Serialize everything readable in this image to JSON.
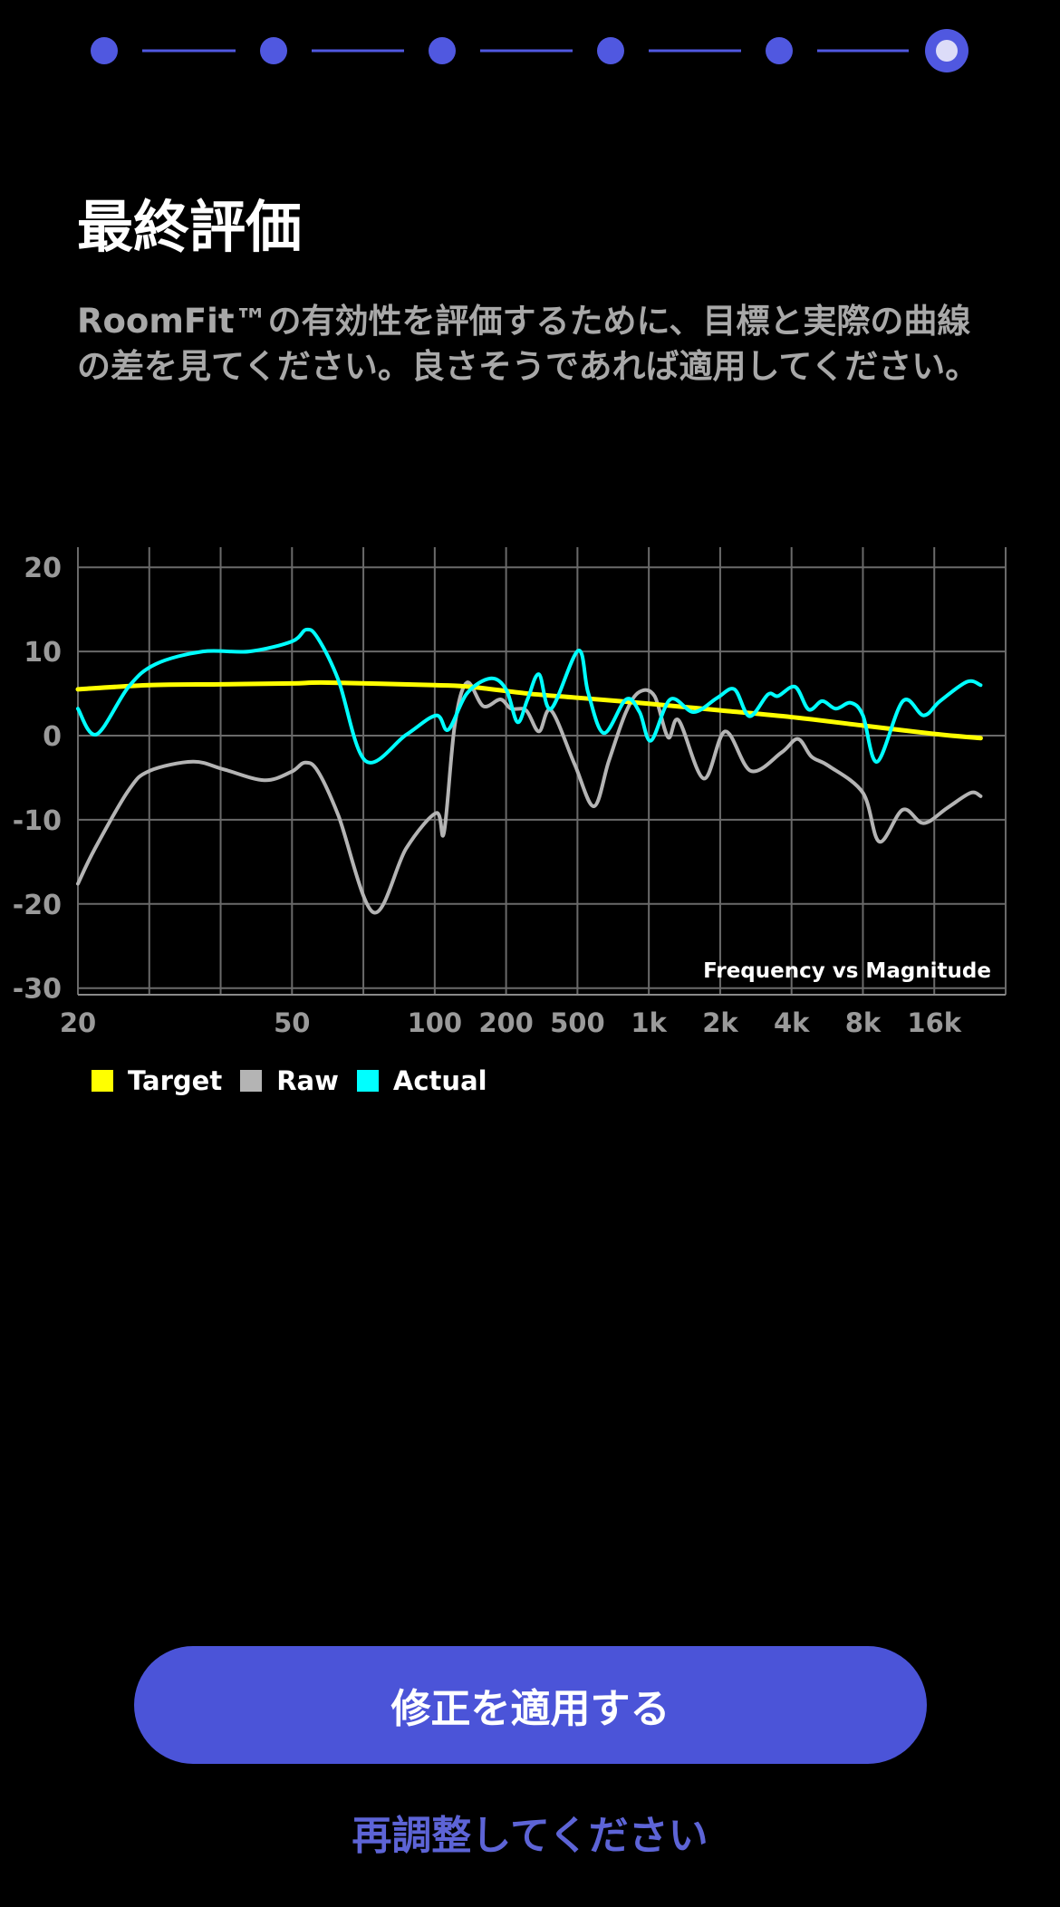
{
  "stepper": {
    "total": 6,
    "current": 6,
    "color": "#5058e0",
    "current_inner_color": "#dcdcf8"
  },
  "title": "最終評価",
  "description": "RoomFit™の有効性を評価するために、目標と実際の曲線の差を見てください。良さそうであれば適用してください。",
  "legend": [
    {
      "label": "Target",
      "color": "#ffff00"
    },
    {
      "label": "Raw",
      "color": "#b4b4b4"
    },
    {
      "label": "Actual",
      "color": "#00ffff"
    }
  ],
  "chart_data": {
    "type": "line",
    "title": "Frequency vs Magnitude",
    "xlabel": "",
    "ylabel": "",
    "x_units": "grid index (13 equal divisions)",
    "xlim": [
      0,
      13
    ],
    "ylim": [
      -31,
      22
    ],
    "yticks": [
      20,
      10,
      0,
      -10,
      -20,
      -30
    ],
    "xticks": [
      {
        "pos": 0,
        "label": "20"
      },
      {
        "pos": 3,
        "label": "50"
      },
      {
        "pos": 5,
        "label": "100"
      },
      {
        "pos": 6,
        "label": "200"
      },
      {
        "pos": 7,
        "label": "500"
      },
      {
        "pos": 8,
        "label": "1k"
      },
      {
        "pos": 9,
        "label": "2k"
      },
      {
        "pos": 10,
        "label": "4k"
      },
      {
        "pos": 11,
        "label": "8k"
      },
      {
        "pos": 12,
        "label": "16k"
      }
    ],
    "grid": true,
    "legend_position": "bottom-left",
    "series": [
      {
        "name": "Raw",
        "color": "#b4b4b4",
        "points": [
          [
            0,
            -17.6
          ],
          [
            0.24,
            -13.4
          ],
          [
            0.71,
            -6.5
          ],
          [
            1.0,
            -4.2
          ],
          [
            1.61,
            -3.1
          ],
          [
            2.04,
            -4
          ],
          [
            2.61,
            -5.3
          ],
          [
            2.99,
            -4.3
          ],
          [
            3.18,
            -3.2
          ],
          [
            3.36,
            -4.2
          ],
          [
            3.65,
            -9.5
          ],
          [
            4.14,
            -21
          ],
          [
            4.6,
            -13.4
          ],
          [
            5.02,
            -9.2
          ],
          [
            5.13,
            -11.5
          ],
          [
            5.28,
            1.2
          ],
          [
            5.45,
            6.3
          ],
          [
            5.68,
            3.5
          ],
          [
            5.92,
            4.3
          ],
          [
            6.07,
            3.2
          ],
          [
            6.28,
            3.0
          ],
          [
            6.46,
            0.5
          ],
          [
            6.63,
            3.0
          ],
          [
            6.96,
            -3.4
          ],
          [
            7.23,
            -8.4
          ],
          [
            7.44,
            -3
          ],
          [
            7.68,
            2.8
          ],
          [
            7.87,
            5.2
          ],
          [
            8.08,
            4.7
          ],
          [
            8.27,
            -0.2
          ],
          [
            8.42,
            1.8
          ],
          [
            8.77,
            -5.1
          ],
          [
            9.07,
            0.5
          ],
          [
            9.43,
            -4.2
          ],
          [
            9.86,
            -2
          ],
          [
            10.09,
            -0.4
          ],
          [
            10.28,
            -2.5
          ],
          [
            10.52,
            -3.6
          ],
          [
            11.0,
            -6.8
          ],
          [
            11.23,
            -12.6
          ],
          [
            11.56,
            -8.8
          ],
          [
            11.85,
            -10.4
          ],
          [
            12.18,
            -8.6
          ],
          [
            12.51,
            -6.8
          ],
          [
            12.65,
            -7.2
          ]
        ]
      },
      {
        "name": "Target",
        "color": "#ffff00",
        "points": [
          [
            0,
            5.5
          ],
          [
            1,
            6.0
          ],
          [
            2,
            6.1
          ],
          [
            3,
            6.2
          ],
          [
            3.5,
            6.3
          ],
          [
            5,
            6.0
          ],
          [
            5.5,
            5.8
          ],
          [
            6.3,
            5.0
          ],
          [
            7,
            4.5
          ],
          [
            8,
            3.8
          ],
          [
            9,
            3.0
          ],
          [
            10,
            2.2
          ],
          [
            11,
            1.2
          ],
          [
            12,
            0.2
          ],
          [
            12.65,
            -0.3
          ]
        ]
      },
      {
        "name": "Actual",
        "color": "#00ffff",
        "points": [
          [
            0,
            3.2
          ],
          [
            0.26,
            0.15
          ],
          [
            0.71,
            5.8
          ],
          [
            1.09,
            8.5
          ],
          [
            1.75,
            10
          ],
          [
            2.4,
            10
          ],
          [
            3.0,
            11.2
          ],
          [
            3.2,
            12.6
          ],
          [
            3.36,
            11.6
          ],
          [
            3.65,
            6.6
          ],
          [
            4.03,
            -3
          ],
          [
            4.6,
            0.1
          ],
          [
            5.02,
            2.4
          ],
          [
            5.19,
            0.7
          ],
          [
            5.45,
            5
          ],
          [
            5.78,
            6.8
          ],
          [
            6.0,
            5.5
          ],
          [
            6.16,
            1.6
          ],
          [
            6.3,
            4.3
          ],
          [
            6.46,
            7.3
          ],
          [
            6.63,
            3.2
          ],
          [
            7.01,
            10.1
          ],
          [
            7.15,
            5.1
          ],
          [
            7.37,
            0.3
          ],
          [
            7.68,
            4.3
          ],
          [
            7.87,
            2.8
          ],
          [
            8.03,
            -0.6
          ],
          [
            8.3,
            4.3
          ],
          [
            8.63,
            2.8
          ],
          [
            8.96,
            4.5
          ],
          [
            9.2,
            5.5
          ],
          [
            9.41,
            2.3
          ],
          [
            9.67,
            4.9
          ],
          [
            9.81,
            4.7
          ],
          [
            10.05,
            5.8
          ],
          [
            10.24,
            3.1
          ],
          [
            10.43,
            4.1
          ],
          [
            10.62,
            3.2
          ],
          [
            10.83,
            3.9
          ],
          [
            11.0,
            2.4
          ],
          [
            11.2,
            -3.1
          ],
          [
            11.56,
            4.1
          ],
          [
            11.85,
            2.4
          ],
          [
            12.08,
            4.1
          ],
          [
            12.46,
            6.4
          ],
          [
            12.65,
            6.0
          ]
        ]
      }
    ]
  },
  "buttons": {
    "apply": "修正を適用する",
    "readjust": "再調整してください"
  }
}
